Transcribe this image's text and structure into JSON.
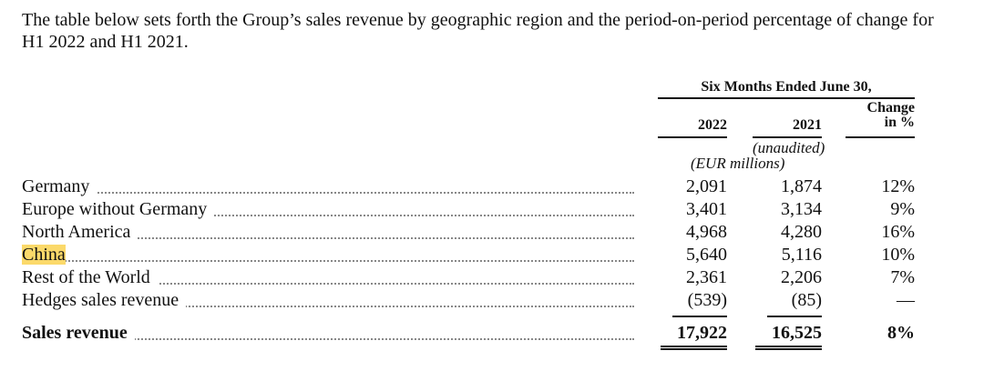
{
  "intro": "The table below sets forth the Group’s sales revenue by geographic region and the period-on-period percentage of change for H1 2022 and H1 2021.",
  "table": {
    "period_header": "Six Months Ended June 30,",
    "columns": [
      "2022",
      "2021",
      "Change in %"
    ],
    "change_header_line1": "Change",
    "change_header_line2": "in %",
    "note_unaudited": "(unaudited)",
    "note_units": "(EUR millions)",
    "rows": [
      {
        "label": "Germany",
        "v2022": "2,091",
        "v2021": "1,874",
        "change": "12%"
      },
      {
        "label": "Europe without Germany",
        "v2022": "3,401",
        "v2021": "3,134",
        "change": "9%"
      },
      {
        "label": "North America",
        "v2022": "4,968",
        "v2021": "4,280",
        "change": "16%"
      },
      {
        "label": "China",
        "v2022": "5,640",
        "v2021": "5,116",
        "change": "10%",
        "highlighted": true
      },
      {
        "label": "Rest of the World",
        "v2022": "2,361",
        "v2021": "2,206",
        "change": "7%"
      },
      {
        "label": "Hedges sales revenue",
        "v2022": "(539)",
        "v2021": "(85)",
        "change": "—"
      }
    ],
    "total": {
      "label": "Sales revenue",
      "v2022": "17,922",
      "v2021": "16,525",
      "change": "8%"
    }
  },
  "colors": {
    "highlight": "#fbd96a"
  }
}
